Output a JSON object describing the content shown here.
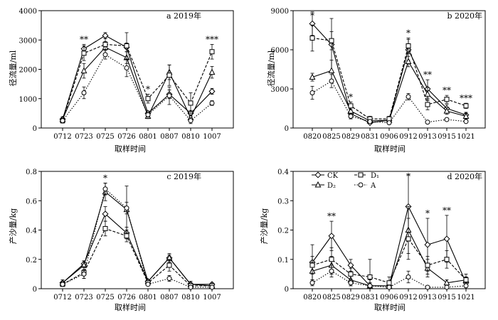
{
  "figure": {
    "panels": [
      {
        "tag": "a 2019年",
        "ylabel": "径流量/ml",
        "xlabel": "取样时间"
      },
      {
        "tag": "b 2020年",
        "ylabel": "径流量/ml",
        "xlabel": "取样时间"
      },
      {
        "tag": "c 2019年",
        "ylabel": "产沙量/kg",
        "xlabel": "取样时间"
      },
      {
        "tag": "d 2020年",
        "ylabel": "产沙量/kg",
        "xlabel": "取样时间",
        "legend": [
          {
            "label": "CK",
            "marker": "diamond",
            "dash": "solid"
          },
          {
            "label": "D₁",
            "marker": "square",
            "dash": "dashed"
          },
          {
            "label": "D₂",
            "marker": "triangle",
            "dash": "solid"
          },
          {
            "label": "A",
            "marker": "circle",
            "dash": "dotted"
          }
        ]
      }
    ]
  },
  "chart_data": [
    {
      "type": "line",
      "title": "a 2019年",
      "xlabel": "取样时间",
      "ylabel": "径流量/ml",
      "categories": [
        "0712",
        "0723",
        "0725",
        "0726",
        "0801",
        "0807",
        "0810",
        "1007"
      ],
      "ylim": [
        0,
        4000
      ],
      "yticks": [
        0,
        1000,
        2000,
        3000,
        4000
      ],
      "series": [
        {
          "name": "CK",
          "marker": "diamond",
          "dash": "solid",
          "values": [
            300,
            2700,
            3150,
            2750,
            500,
            1150,
            500,
            1250
          ],
          "err": [
            80,
            150,
            100,
            150,
            80,
            150,
            100,
            100
          ]
        },
        {
          "name": "D₂",
          "marker": "triangle",
          "dash": "solid",
          "values": [
            300,
            1950,
            2750,
            2400,
            400,
            1900,
            350,
            1900
          ],
          "err": [
            80,
            250,
            200,
            200,
            80,
            250,
            100,
            200
          ]
        },
        {
          "name": "D₁",
          "marker": "square",
          "dash": "dashed",
          "values": [
            250,
            2550,
            2850,
            2800,
            1000,
            1800,
            850,
            2600
          ],
          "err": [
            80,
            250,
            200,
            450,
            150,
            350,
            350,
            250
          ]
        },
        {
          "name": "A",
          "marker": "circle",
          "dash": "dotted",
          "values": [
            250,
            1200,
            2500,
            2050,
            450,
            1100,
            250,
            850
          ],
          "err": [
            80,
            200,
            150,
            300,
            80,
            300,
            100,
            80
          ]
        }
      ],
      "annotations": [
        {
          "x": "0723",
          "text": "**"
        },
        {
          "x": "0801",
          "text": "*"
        },
        {
          "x": "1007",
          "text": "***"
        }
      ]
    },
    {
      "type": "line",
      "title": "b 2020年",
      "xlabel": "取样时间",
      "ylabel": "径流量/ml",
      "categories": [
        "0820",
        "0825",
        "0829",
        "0831",
        "0906",
        "0912",
        "0913",
        "0915",
        "1021"
      ],
      "ylim": [
        0,
        9000
      ],
      "yticks": [
        0,
        3000,
        6000,
        9000
      ],
      "series": [
        {
          "name": "CK",
          "marker": "diamond",
          "dash": "solid",
          "values": [
            8000,
            6400,
            1100,
            400,
            600,
            6000,
            3000,
            1500,
            1000
          ],
          "err": [
            900,
            2000,
            200,
            100,
            100,
            800,
            700,
            300,
            200
          ]
        },
        {
          "name": "D₂",
          "marker": "triangle",
          "dash": "solid",
          "values": [
            3900,
            4400,
            1300,
            550,
            600,
            5100,
            2600,
            1300,
            900
          ],
          "err": [
            300,
            800,
            300,
            150,
            150,
            400,
            500,
            250,
            200
          ]
        },
        {
          "name": "D₁",
          "marker": "square",
          "dash": "dashed",
          "values": [
            6900,
            6700,
            1700,
            700,
            700,
            6300,
            1800,
            2200,
            1700
          ],
          "err": [
            1000,
            700,
            300,
            200,
            200,
            600,
            400,
            300,
            200
          ]
        },
        {
          "name": "A",
          "marker": "circle",
          "dash": "dotted",
          "values": [
            2700,
            3600,
            900,
            500,
            400,
            2400,
            450,
            650,
            500
          ],
          "err": [
            500,
            500,
            200,
            100,
            100,
            250,
            80,
            100,
            80
          ]
        }
      ],
      "annotations": [
        {
          "x": "0820",
          "text": "*"
        },
        {
          "x": "0829",
          "text": "*"
        },
        {
          "x": "0912",
          "text": "*"
        },
        {
          "x": "0913",
          "text": "**"
        },
        {
          "x": "0915",
          "text": "**"
        },
        {
          "x": "1021",
          "text": "***"
        }
      ]
    },
    {
      "type": "line",
      "title": "c 2019年",
      "xlabel": "取样时间",
      "ylabel": "产沙量/kg",
      "categories": [
        "0712",
        "0723",
        "0725",
        "0726",
        "0801",
        "0807",
        "0810",
        "1007"
      ],
      "ylim": [
        0,
        0.8
      ],
      "yticks": [
        0,
        0.2,
        0.4,
        0.6,
        0.8
      ],
      "series": [
        {
          "name": "CK",
          "marker": "diamond",
          "dash": "solid",
          "values": [
            0.04,
            0.17,
            0.51,
            0.38,
            0.05,
            0.21,
            0.03,
            0.03
          ],
          "err": [
            0.01,
            0.02,
            0.05,
            0.04,
            0.01,
            0.02,
            0.01,
            0.01
          ]
        },
        {
          "name": "D₂",
          "marker": "triangle",
          "dash": "solid",
          "values": [
            0.04,
            0.16,
            0.66,
            0.54,
            0.05,
            0.21,
            0.03,
            0.02
          ],
          "err": [
            0.02,
            0.03,
            0.06,
            0.16,
            0.01,
            0.03,
            0.02,
            0.01
          ]
        },
        {
          "name": "D₁",
          "marker": "square",
          "dash": "dashed",
          "values": [
            0.03,
            0.11,
            0.41,
            0.36,
            0.04,
            0.16,
            0.02,
            0.02
          ],
          "err": [
            0.01,
            0.04,
            0.05,
            0.04,
            0.01,
            0.04,
            0.01,
            0.01
          ]
        },
        {
          "name": "A",
          "marker": "circle",
          "dash": "dotted",
          "values": [
            0.03,
            0.1,
            0.68,
            0.55,
            0.03,
            0.07,
            0.01,
            0.01
          ],
          "err": [
            0.01,
            0.03,
            0.04,
            0.04,
            0.01,
            0.02,
            0.01,
            0.01
          ]
        }
      ],
      "annotations": [
        {
          "x": "0725",
          "text": "*"
        }
      ]
    },
    {
      "type": "line",
      "title": "d 2020年",
      "xlabel": "取样时间",
      "ylabel": "产沙量/kg",
      "categories": [
        "0820",
        "0825",
        "0829",
        "0831",
        "0906",
        "0912",
        "0913",
        "0915",
        "1021"
      ],
      "ylim": [
        0,
        0.4
      ],
      "yticks": [
        0,
        0.1,
        0.2,
        0.3,
        0.4
      ],
      "series": [
        {
          "name": "CK",
          "marker": "diamond",
          "dash": "solid",
          "values": [
            0.09,
            0.18,
            0.08,
            0.01,
            0.01,
            0.28,
            0.15,
            0.17,
            0.02
          ],
          "err": [
            0.06,
            0.05,
            0.02,
            0.02,
            0.01,
            0.11,
            0.09,
            0.08,
            0.02
          ]
        },
        {
          "name": "D₂",
          "marker": "triangle",
          "dash": "solid",
          "values": [
            0.06,
            0.08,
            0.03,
            0.01,
            0.01,
            0.2,
            0.07,
            0.02,
            0.03
          ],
          "err": [
            0.03,
            0.03,
            0.02,
            0.01,
            0.01,
            0.08,
            0.03,
            0.01,
            0.01
          ]
        },
        {
          "name": "D₁",
          "marker": "square",
          "dash": "dashed",
          "values": [
            0.08,
            0.1,
            0.05,
            0.04,
            0.02,
            0.17,
            0.08,
            0.1,
            0.03
          ],
          "err": [
            0.03,
            0.04,
            0.02,
            0.06,
            0.02,
            0.07,
            0.03,
            0.03,
            0.02
          ]
        },
        {
          "name": "A",
          "marker": "circle",
          "dash": "dotted",
          "values": [
            0.02,
            0.06,
            0.02,
            0.01,
            0.005,
            0.04,
            0.005,
            0.005,
            0.01
          ],
          "err": [
            0.01,
            0.02,
            0.01,
            0.01,
            0.005,
            0.02,
            0.005,
            0.005,
            0.01
          ]
        }
      ],
      "annotations": [
        {
          "x": "0825",
          "text": "**"
        },
        {
          "x": "0912",
          "text": "*"
        },
        {
          "x": "0913",
          "text": "*"
        },
        {
          "x": "0915",
          "text": "**"
        }
      ]
    }
  ]
}
